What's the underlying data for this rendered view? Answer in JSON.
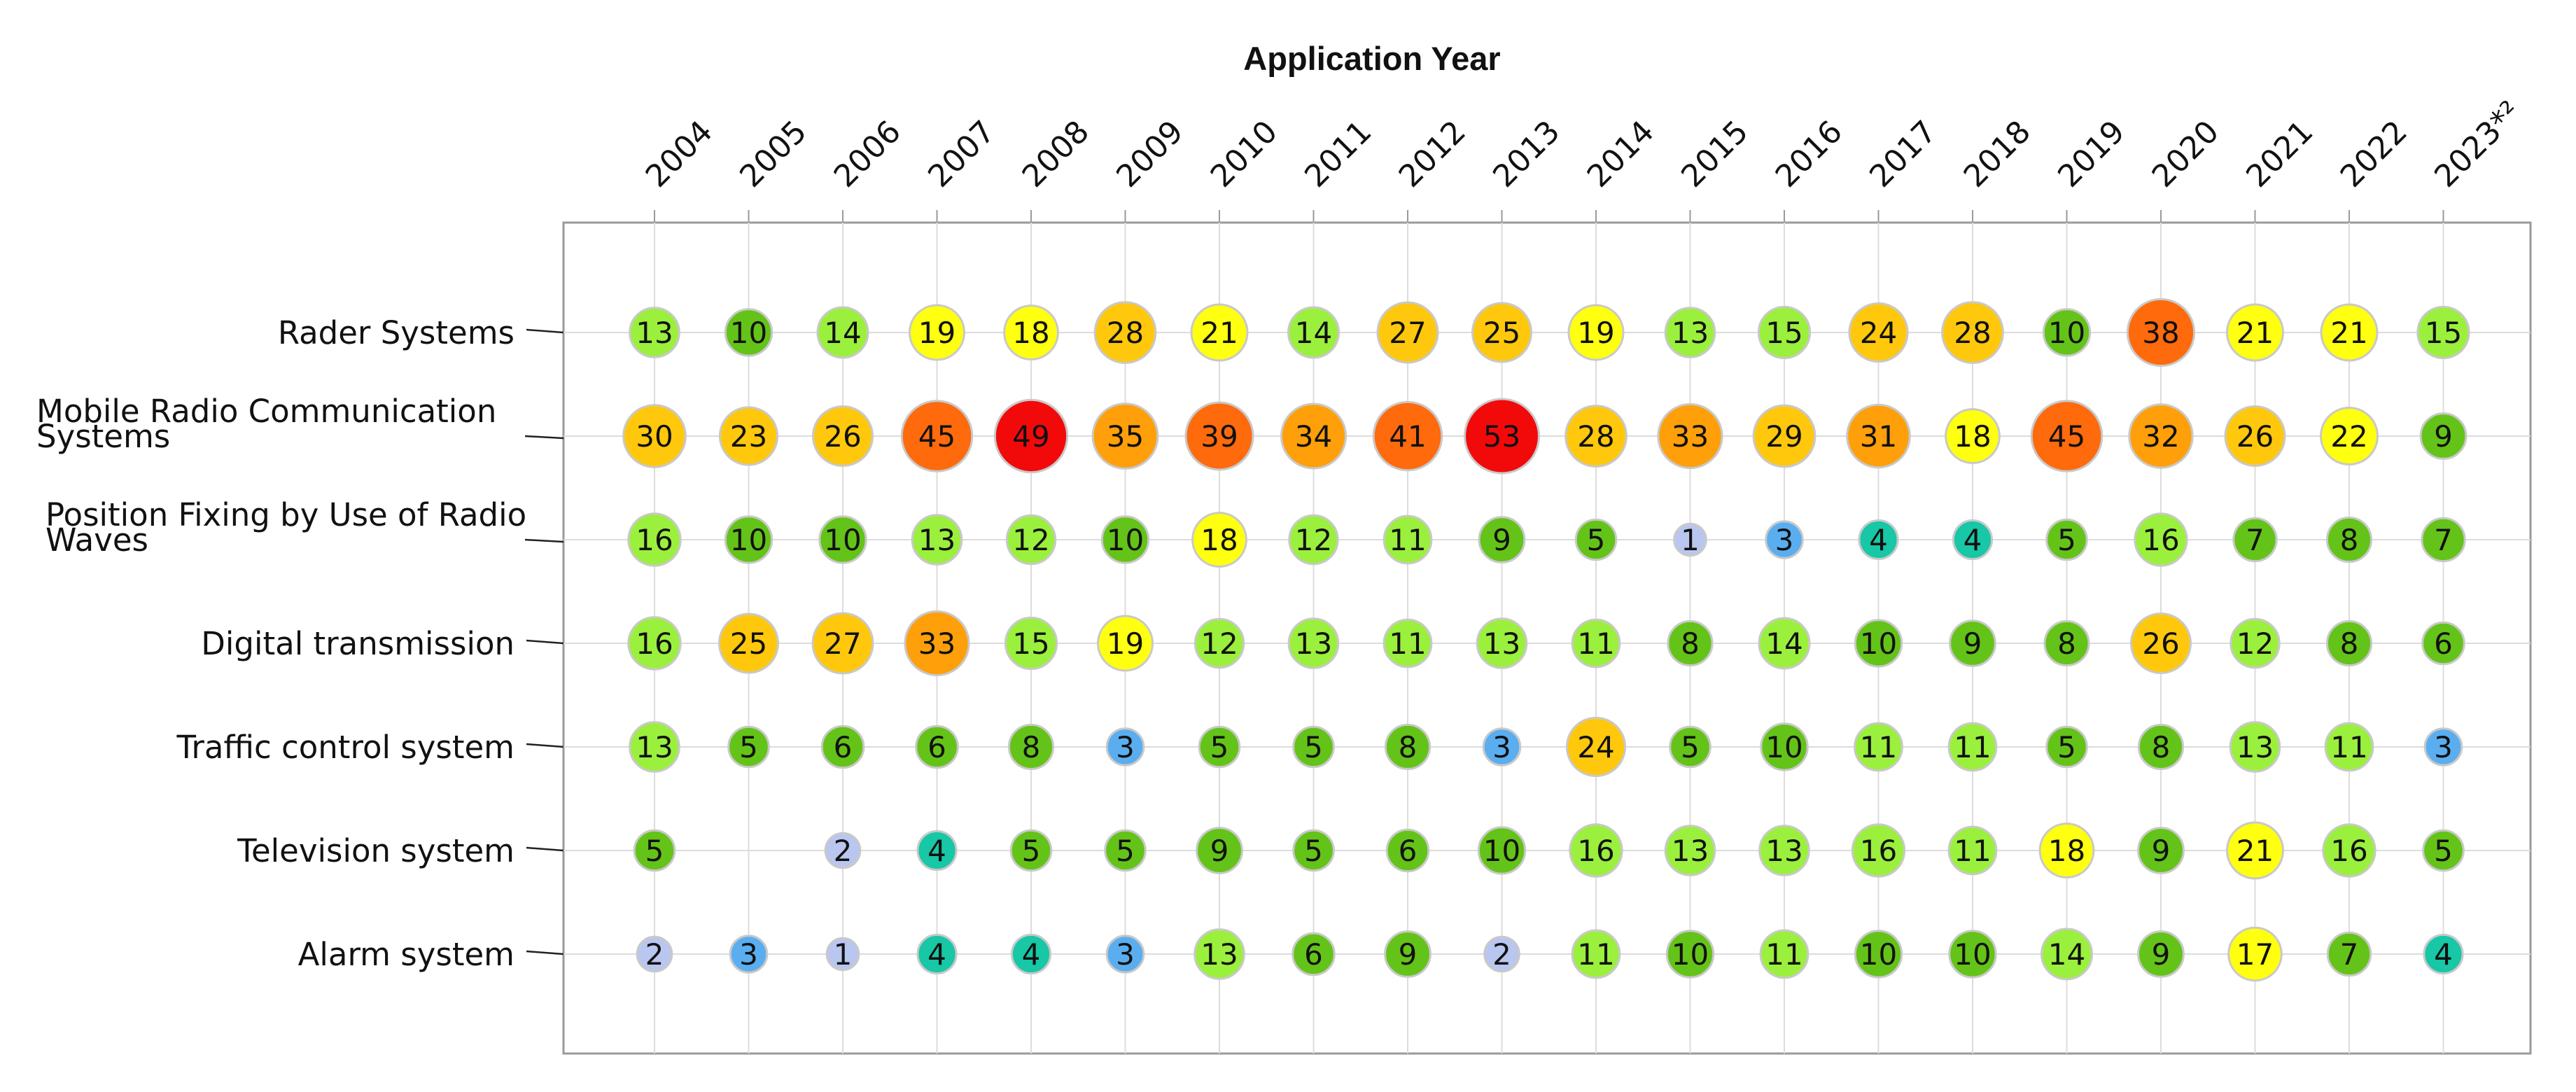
{
  "chart_data": {
    "type": "bubble-matrix",
    "title": "Application Year",
    "years": [
      "2004",
      "2005",
      "2006",
      "2007",
      "2008",
      "2009",
      "2010",
      "2011",
      "2012",
      "2013",
      "2014",
      "2015",
      "2016",
      "2017",
      "2018",
      "2019",
      "2020",
      "2021",
      "2022",
      "2023*²"
    ],
    "categories": [
      {
        "label": "Rader Systems",
        "lines": [
          "Rader Systems"
        ]
      },
      {
        "label": "Mobile Radio Communication Systems",
        "lines": [
          "Mobile Radio Communication",
          "Systems"
        ]
      },
      {
        "label": "Position Fixing by Use of Radio Waves",
        "lines": [
          "Position Fixing by Use of Radio",
          "Waves"
        ]
      },
      {
        "label": "Digital transmission",
        "lines": [
          "Digital transmission"
        ]
      },
      {
        "label": "Traffic control system",
        "lines": [
          "Traffic control system"
        ]
      },
      {
        "label": "Television system",
        "lines": [
          "Television system"
        ]
      },
      {
        "label": "Alarm system",
        "lines": [
          "Alarm system"
        ]
      }
    ],
    "values": [
      [
        13,
        10,
        14,
        19,
        18,
        28,
        21,
        14,
        27,
        25,
        19,
        13,
        15,
        24,
        28,
        10,
        38,
        21,
        21,
        15
      ],
      [
        30,
        23,
        26,
        45,
        49,
        35,
        39,
        34,
        41,
        53,
        28,
        33,
        29,
        31,
        18,
        45,
        32,
        26,
        22,
        9
      ],
      [
        16,
        10,
        10,
        13,
        12,
        10,
        18,
        12,
        11,
        9,
        5,
        1,
        3,
        4,
        4,
        5,
        16,
        7,
        8,
        7
      ],
      [
        16,
        25,
        27,
        33,
        15,
        19,
        12,
        13,
        11,
        13,
        11,
        8,
        14,
        10,
        9,
        8,
        26,
        12,
        8,
        6
      ],
      [
        13,
        5,
        6,
        6,
        8,
        3,
        5,
        5,
        8,
        3,
        24,
        5,
        10,
        11,
        11,
        5,
        8,
        13,
        11,
        3
      ],
      [
        5,
        null,
        2,
        4,
        5,
        5,
        9,
        5,
        6,
        10,
        16,
        13,
        13,
        16,
        11,
        18,
        9,
        21,
        16,
        5
      ],
      [
        2,
        3,
        1,
        4,
        4,
        3,
        13,
        6,
        9,
        2,
        11,
        10,
        11,
        10,
        10,
        14,
        9,
        17,
        7,
        4
      ]
    ],
    "grid": true,
    "color_scale": [
      {
        "max": 2,
        "color": "#b9c6f0"
      },
      {
        "max": 3,
        "color": "#5aaef0"
      },
      {
        "max": 4,
        "color": "#17c7a5"
      },
      {
        "max": 10,
        "color": "#64c318"
      },
      {
        "max": 16,
        "color": "#9af03c"
      },
      {
        "max": 22,
        "color": "#ffff10"
      },
      {
        "max": 30,
        "color": "#ffc80c"
      },
      {
        "max": 36,
        "color": "#ff9f0a"
      },
      {
        "max": 48,
        "color": "#ff6a0d"
      },
      {
        "max": 999,
        "color": "#f20a0a"
      }
    ],
    "bubble_stroke": "#c9c9c9",
    "frame_color": "#9a9a9a",
    "grid_color": "#dcdcdc"
  }
}
